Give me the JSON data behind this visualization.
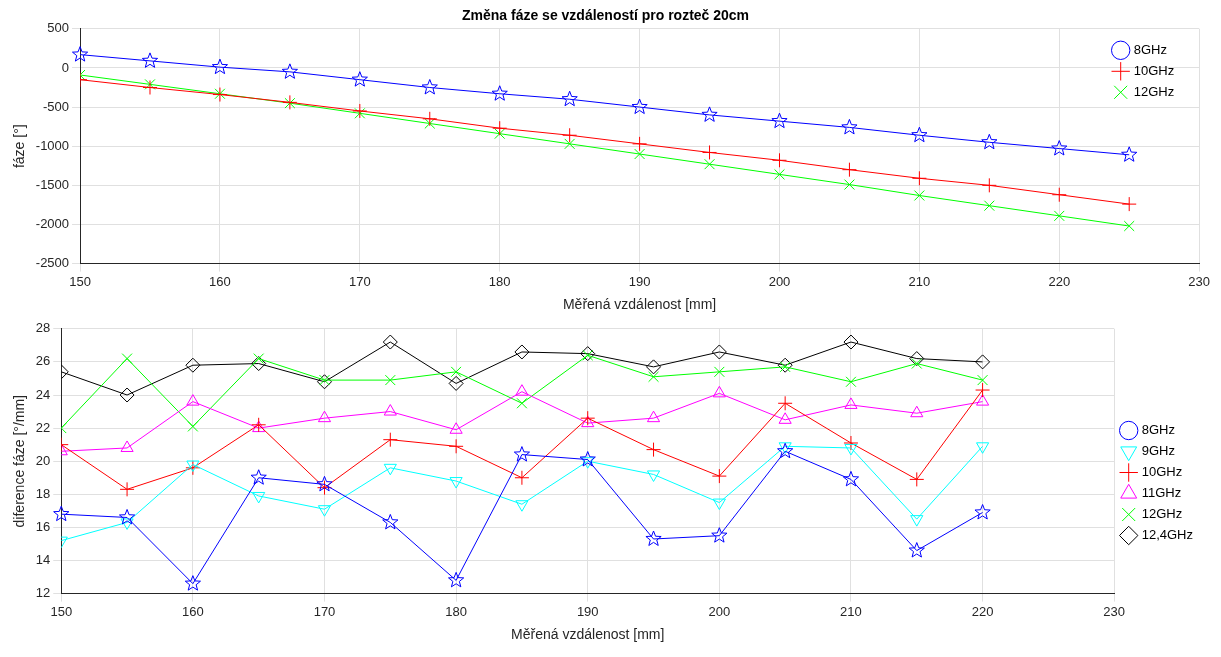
{
  "chart_data": [
    {
      "type": "line",
      "title": "Změna fáze se vzdáleností pro rozteč 20cm",
      "xlabel": "Měřená vzdálenost [mm]",
      "ylabel": "fáze [°]",
      "x": [
        150,
        155,
        160,
        165,
        170,
        175,
        180,
        185,
        190,
        195,
        200,
        205,
        210,
        215,
        220,
        225
      ],
      "xlim": [
        150,
        230
      ],
      "xticks": [
        150,
        160,
        170,
        180,
        190,
        200,
        210,
        220,
        230
      ],
      "ylim": [
        -2500,
        500
      ],
      "yticks": [
        -2500,
        -2000,
        -1500,
        -1000,
        -500,
        0,
        500
      ],
      "grid": true,
      "legend": "top right",
      "series": [
        {
          "name": "8GHz",
          "color": "#0000ff",
          "marker": "star",
          "values": [
            170,
            90,
            10,
            -50,
            -150,
            -250,
            -330,
            -400,
            -500,
            -600,
            -680,
            -760,
            -860,
            -950,
            -1030,
            -1110
          ]
        },
        {
          "name": "10GHz",
          "color": "#ff0000",
          "marker": "plus",
          "values": [
            -150,
            -250,
            -340,
            -440,
            -550,
            -650,
            -770,
            -860,
            -970,
            -1080,
            -1180,
            -1300,
            -1410,
            -1500,
            -1620,
            -1740
          ]
        },
        {
          "name": "12GHz",
          "color": "#00ff00",
          "marker": "cross",
          "values": [
            -90,
            -210,
            -330,
            -450,
            -580,
            -710,
            -840,
            -970,
            -1100,
            -1230,
            -1360,
            -1490,
            -1630,
            -1760,
            -1890,
            -2020
          ]
        }
      ]
    },
    {
      "type": "line",
      "xlabel": "Měřená vzdálenost [mm]",
      "ylabel": "diference fáze [°/mm]",
      "x": [
        150,
        155,
        160,
        165,
        170,
        175,
        180,
        185,
        190,
        195,
        200,
        205,
        210,
        215,
        220
      ],
      "xlim": [
        150,
        230
      ],
      "xticks": [
        150,
        160,
        170,
        180,
        190,
        200,
        210,
        220,
        230
      ],
      "ylim": [
        12,
        28
      ],
      "yticks": [
        12,
        14,
        16,
        18,
        20,
        22,
        24,
        26,
        28
      ],
      "grid": true,
      "legend": "right",
      "series": [
        {
          "name": "8GHz",
          "color": "#0000ff",
          "marker": "star",
          "values": [
            16.8,
            16.6,
            12.6,
            19.0,
            18.6,
            16.3,
            12.8,
            20.4,
            20.1,
            15.3,
            15.5,
            20.6,
            18.9,
            14.6,
            16.9
          ]
        },
        {
          "name": "9GHz",
          "color": "#00ffff",
          "marker": "triangle-down",
          "values": [
            15.2,
            16.3,
            19.8,
            17.9,
            17.1,
            19.6,
            18.8,
            17.4,
            20.0,
            19.2,
            17.5,
            20.9,
            20.8,
            16.5,
            20.9
          ]
        },
        {
          "name": "10GHz",
          "color": "#ff0000",
          "marker": "plus",
          "values": [
            21.0,
            18.3,
            19.6,
            22.2,
            18.4,
            21.3,
            20.9,
            19.0,
            22.6,
            20.7,
            19.1,
            23.5,
            21.1,
            18.9,
            24.3
          ]
        },
        {
          "name": "11GHz",
          "color": "#ff00ff",
          "marker": "triangle",
          "values": [
            20.6,
            20.8,
            23.6,
            22.0,
            22.6,
            23.0,
            21.9,
            24.2,
            22.3,
            22.6,
            24.1,
            22.5,
            23.4,
            22.9,
            23.6
          ]
        },
        {
          "name": "12GHz",
          "color": "#00ff00",
          "marker": "cross",
          "values": [
            22.0,
            26.2,
            22.1,
            26.2,
            24.9,
            24.9,
            25.4,
            23.5,
            26.4,
            25.1,
            25.4,
            25.7,
            24.8,
            25.9,
            24.9
          ]
        },
        {
          "name": "12,4GHz",
          "color": "#000000",
          "marker": "diamond",
          "values": [
            25.4,
            24.0,
            25.8,
            25.9,
            24.8,
            27.2,
            24.7,
            26.6,
            26.5,
            25.7,
            26.6,
            25.8,
            27.2,
            26.2,
            26.0
          ]
        }
      ]
    }
  ]
}
